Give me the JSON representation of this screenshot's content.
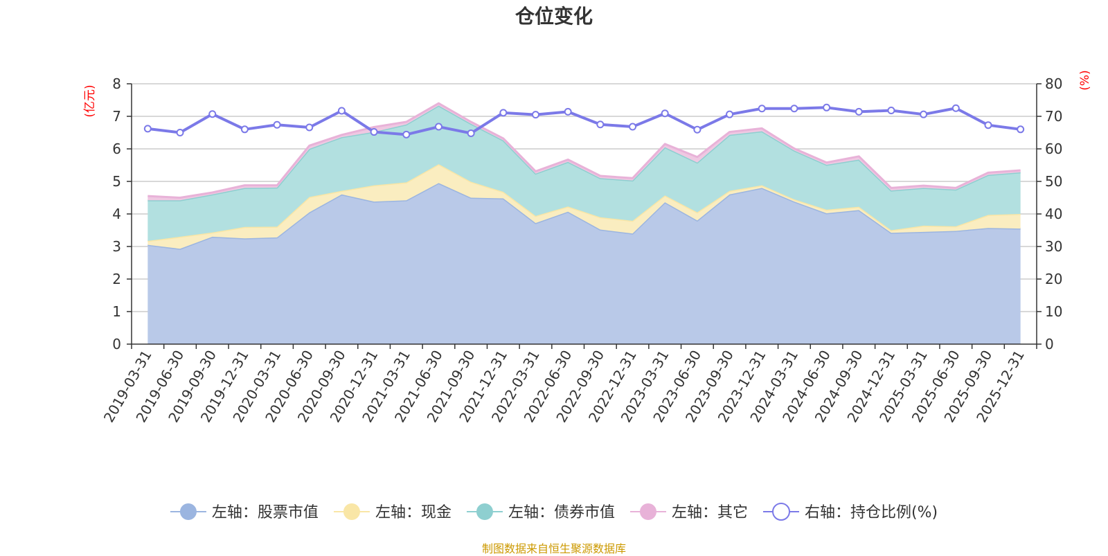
{
  "chart_data": {
    "type": "area",
    "title": "仓位变化",
    "source": "制图数据来自恒生聚源数据库",
    "left_axis": {
      "unit": "(亿元)",
      "ylim": [
        0,
        8
      ],
      "ticks": [
        "0",
        "1",
        "2",
        "3",
        "4",
        "5",
        "6",
        "7",
        "8"
      ]
    },
    "right_axis": {
      "unit": "(%)",
      "ylim": [
        0,
        80
      ],
      "ticks": [
        "0",
        "10",
        "20",
        "30",
        "40",
        "50",
        "60",
        "70",
        "80"
      ]
    },
    "categories": [
      "2019-03-31",
      "2019-06-30",
      "2019-09-30",
      "2019-12-31",
      "2020-03-31",
      "2020-06-30",
      "2020-09-30",
      "2020-12-31",
      "2021-03-31",
      "2021-06-30",
      "2021-09-30",
      "2021-12-31",
      "2022-03-31",
      "2022-06-30",
      "2022-09-30",
      "2022-12-31",
      "2023-03-31",
      "2023-06-30",
      "2023-09-30",
      "2023-12-31",
      "2024-03-31",
      "2024-06-30",
      "2024-09-30",
      "2024-12-31",
      "2025-03-31",
      "2025-06-30",
      "2025-09-30",
      "2025-12-31"
    ],
    "stacked_series": [
      {
        "name": "左轴：股票市值",
        "color": "#9bb5e0",
        "fill": "#b9c9e8",
        "values": [
          3.05,
          2.93,
          3.3,
          3.25,
          3.28,
          4.05,
          4.6,
          4.38,
          4.42,
          4.95,
          4.5,
          4.48,
          3.72,
          4.07,
          3.52,
          3.4,
          4.36,
          3.8,
          4.6,
          4.8,
          4.38,
          4.02,
          4.12,
          3.42,
          3.45,
          3.48,
          3.57,
          3.55
        ]
      },
      {
        "name": "左轴：现金",
        "color": "#f9e6a6",
        "fill": "#faedc0",
        "values": [
          0.12,
          0.37,
          0.13,
          0.35,
          0.33,
          0.47,
          0.11,
          0.5,
          0.55,
          0.58,
          0.49,
          0.2,
          0.22,
          0.16,
          0.38,
          0.39,
          0.21,
          0.25,
          0.11,
          0.08,
          0.07,
          0.11,
          0.1,
          0.08,
          0.19,
          0.14,
          0.4,
          0.45
        ]
      },
      {
        "name": "左轴：债券市值",
        "color": "#8ecfd0",
        "fill": "#b2e0e0",
        "values": [
          1.25,
          1.12,
          1.17,
          1.2,
          1.2,
          1.48,
          1.65,
          1.64,
          1.78,
          1.8,
          1.78,
          1.58,
          1.3,
          1.37,
          1.2,
          1.24,
          1.48,
          1.53,
          1.72,
          1.66,
          1.5,
          1.38,
          1.45,
          1.22,
          1.16,
          1.13,
          1.23,
          1.28
        ]
      },
      {
        "name": "左轴：其它",
        "color": "#e8b2d8",
        "fill": "#efc8e2",
        "values": [
          0.13,
          0.08,
          0.06,
          0.08,
          0.07,
          0.1,
          0.07,
          0.15,
          0.08,
          0.07,
          0.06,
          0.06,
          0.07,
          0.07,
          0.07,
          0.07,
          0.1,
          0.17,
          0.09,
          0.09,
          0.06,
          0.07,
          0.1,
          0.08,
          0.07,
          0.05,
          0.07,
          0.06
        ]
      }
    ],
    "line_series": {
      "name": "右轴：持仓比例(%)",
      "axis": "right",
      "color": "#7b79e8",
      "values": [
        66.2,
        65.0,
        70.7,
        66.0,
        67.4,
        66.6,
        71.7,
        65.2,
        64.4,
        66.8,
        64.8,
        71.1,
        70.5,
        71.4,
        67.5,
        66.8,
        70.9,
        65.9,
        70.6,
        72.4,
        72.4,
        72.7,
        71.4,
        71.8,
        70.6,
        72.5,
        67.3,
        66.0
      ]
    },
    "legend": {
      "position": "bottom-center",
      "items": [
        {
          "label": "左轴：股票市值",
          "marker": "filled-circle",
          "color": "#9bb5e0"
        },
        {
          "label": "左轴：现金",
          "marker": "filled-circle",
          "color": "#f9e6a6"
        },
        {
          "label": "左轴：债券市值",
          "marker": "filled-circle",
          "color": "#8ecfd0"
        },
        {
          "label": "左轴：其它",
          "marker": "filled-circle",
          "color": "#e8b2d8"
        },
        {
          "label": "右轴：持仓比例(%)",
          "marker": "hollow-circle",
          "color": "#7b79e8"
        }
      ]
    },
    "grid": true
  }
}
